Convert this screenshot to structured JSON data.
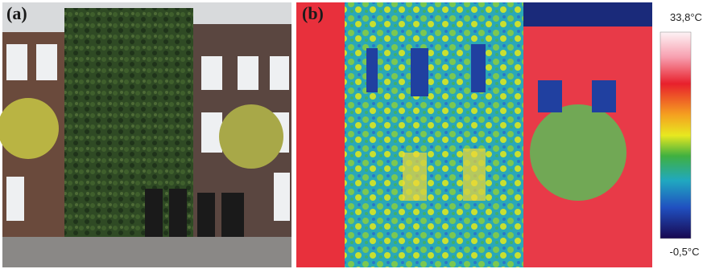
{
  "panels": [
    {
      "label": "(a)"
    },
    {
      "label": "(b)"
    }
  ],
  "colorbar": {
    "max_label": "33,8°C",
    "min_label": "-0,5°C"
  }
}
